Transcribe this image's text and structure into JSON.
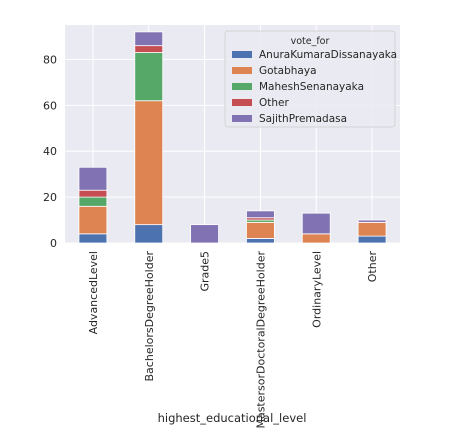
{
  "chart_data": {
    "type": "bar",
    "stacked": true,
    "title": "",
    "xlabel": "highest_educational_level",
    "ylabel": "",
    "ylim": [
      0,
      95
    ],
    "yticks": [
      0,
      20,
      40,
      60,
      80
    ],
    "grid": true,
    "legend_title": "vote_for",
    "legend_position": "upper-right",
    "categories": [
      "AdvancedLevel",
      "BachelorsDegreeHolder",
      "Grade5",
      "MastersorDoctoralDegreeHolder",
      "OrdinaryLevel",
      "Other"
    ],
    "series": [
      {
        "name": "AnuraKumaraDissanayaka",
        "color": "#4c72b0",
        "values": [
          4,
          8,
          0,
          2,
          0,
          3
        ]
      },
      {
        "name": "Gotabhaya",
        "color": "#dd8452",
        "values": [
          12,
          54,
          0,
          7,
          4,
          6
        ]
      },
      {
        "name": "MaheshSenanayaka",
        "color": "#55a868",
        "values": [
          4,
          21,
          0,
          1,
          0,
          0
        ]
      },
      {
        "name": "Other",
        "color": "#c44e52",
        "values": [
          3,
          3,
          0,
          1,
          0,
          0
        ]
      },
      {
        "name": "SajithPremadasa",
        "color": "#8172b3",
        "values": [
          10,
          6,
          8,
          3,
          9,
          1
        ]
      }
    ]
  }
}
